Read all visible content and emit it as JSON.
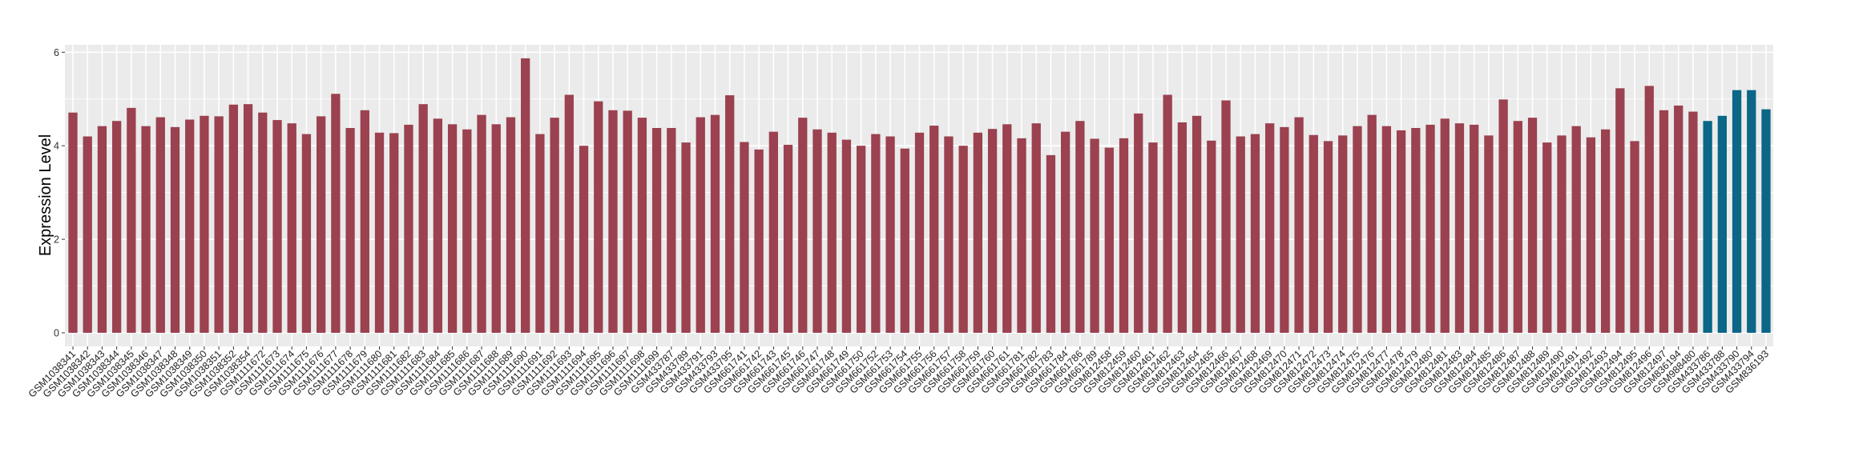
{
  "chart_data": {
    "type": "bar",
    "title": "",
    "xlabel": "",
    "ylabel": "Expression Level",
    "ylim": [
      0,
      6
    ],
    "yticks": [
      0,
      2,
      4,
      6
    ],
    "grid": true,
    "colors": {
      "group_a": "#9B4150",
      "group_b": "#0B6688",
      "panel": "#EBEBEB",
      "grid": "#FFFFFF"
    },
    "categories": [
      "GSM1038341",
      "GSM1038342",
      "GSM1038343",
      "GSM1038344",
      "GSM1038345",
      "GSM1038346",
      "GSM1038347",
      "GSM1038348",
      "GSM1038349",
      "GSM1038350",
      "GSM1038351",
      "GSM1038352",
      "GSM1038354",
      "GSM1111672",
      "GSM1111673",
      "GSM1111674",
      "GSM1111675",
      "GSM1111676",
      "GSM1111677",
      "GSM1111678",
      "GSM1111679",
      "GSM1111680",
      "GSM1111681",
      "GSM1111682",
      "GSM1111683",
      "GSM1111684",
      "GSM1111685",
      "GSM1111686",
      "GSM1111687",
      "GSM1111688",
      "GSM1111689",
      "GSM1111690",
      "GSM1111691",
      "GSM1111692",
      "GSM1111693",
      "GSM1111694",
      "GSM1111695",
      "GSM1111696",
      "GSM1111697",
      "GSM1111698",
      "GSM1111699",
      "GSM433787",
      "GSM433789",
      "GSM433791",
      "GSM433793",
      "GSM433795",
      "GSM661741",
      "GSM661742",
      "GSM661743",
      "GSM661745",
      "GSM661746",
      "GSM661747",
      "GSM661748",
      "GSM661749",
      "GSM661750",
      "GSM661752",
      "GSM661753",
      "GSM661754",
      "GSM661755",
      "GSM661756",
      "GSM661757",
      "GSM661758",
      "GSM661759",
      "GSM661760",
      "GSM661761",
      "GSM661781",
      "GSM661782",
      "GSM661783",
      "GSM661784",
      "GSM661786",
      "GSM661789",
      "GSM812458",
      "GSM812459",
      "GSM812460",
      "GSM812461",
      "GSM812462",
      "GSM812463",
      "GSM812464",
      "GSM812465",
      "GSM812466",
      "GSM812467",
      "GSM812468",
      "GSM812469",
      "GSM812470",
      "GSM812471",
      "GSM812472",
      "GSM812473",
      "GSM812474",
      "GSM812475",
      "GSM812476",
      "GSM812477",
      "GSM812478",
      "GSM812479",
      "GSM812480",
      "GSM812481",
      "GSM812483",
      "GSM812484",
      "GSM812485",
      "GSM812486",
      "GSM812487",
      "GSM812488",
      "GSM812489",
      "GSM812490",
      "GSM812491",
      "GSM812492",
      "GSM812493",
      "GSM812494",
      "GSM812495",
      "GSM812496",
      "GSM812497",
      "GSM836194",
      "GSM988480",
      "GSM433786",
      "GSM433788",
      "GSM433790",
      "GSM433794",
      "GSM836193"
    ],
    "values": [
      4.71,
      4.2,
      4.42,
      4.53,
      4.81,
      4.42,
      4.61,
      4.4,
      4.56,
      4.64,
      4.63,
      4.88,
      4.89,
      4.71,
      4.55,
      4.48,
      4.25,
      4.63,
      5.11,
      4.38,
      4.76,
      4.28,
      4.27,
      4.45,
      4.89,
      4.58,
      4.46,
      4.35,
      4.66,
      4.46,
      4.61,
      5.87,
      4.25,
      4.6,
      5.09,
      4.0,
      4.95,
      4.76,
      4.75,
      4.6,
      4.38,
      4.38,
      4.07,
      4.61,
      4.66,
      5.08,
      4.08,
      3.92,
      4.3,
      4.02,
      4.6,
      4.35,
      4.28,
      4.13,
      4.0,
      4.25,
      4.2,
      3.94,
      4.28,
      4.43,
      4.2,
      4.0,
      4.28,
      4.36,
      4.46,
      4.16,
      4.48,
      3.8,
      4.3,
      4.53,
      4.15,
      3.96,
      4.16,
      4.69,
      4.07,
      5.09,
      4.5,
      4.64,
      4.11,
      4.97,
      4.2,
      4.25,
      4.48,
      4.4,
      4.61,
      4.23,
      4.1,
      4.22,
      4.42,
      4.66,
      4.42,
      4.33,
      4.38,
      4.45,
      4.58,
      4.48,
      4.45,
      4.22,
      4.99,
      4.53,
      4.6,
      4.07,
      4.22,
      4.42,
      4.18,
      4.35,
      5.23,
      4.1,
      5.28,
      4.76,
      4.86,
      4.73,
      4.53,
      4.64,
      5.19,
      5.19,
      4.78
    ],
    "groups": [
      "a",
      "a",
      "a",
      "a",
      "a",
      "a",
      "a",
      "a",
      "a",
      "a",
      "a",
      "a",
      "a",
      "a",
      "a",
      "a",
      "a",
      "a",
      "a",
      "a",
      "a",
      "a",
      "a",
      "a",
      "a",
      "a",
      "a",
      "a",
      "a",
      "a",
      "a",
      "a",
      "a",
      "a",
      "a",
      "a",
      "a",
      "a",
      "a",
      "a",
      "a",
      "a",
      "a",
      "a",
      "a",
      "a",
      "a",
      "a",
      "a",
      "a",
      "a",
      "a",
      "a",
      "a",
      "a",
      "a",
      "a",
      "a",
      "a",
      "a",
      "a",
      "a",
      "a",
      "a",
      "a",
      "a",
      "a",
      "a",
      "a",
      "a",
      "a",
      "a",
      "a",
      "a",
      "a",
      "a",
      "a",
      "a",
      "a",
      "a",
      "a",
      "a",
      "a",
      "a",
      "a",
      "a",
      "a",
      "a",
      "a",
      "a",
      "a",
      "a",
      "a",
      "a",
      "a",
      "a",
      "a",
      "a",
      "a",
      "a",
      "a",
      "a",
      "a",
      "a",
      "a",
      "a",
      "a",
      "a",
      "a",
      "a",
      "a",
      "a",
      "b",
      "b",
      "b",
      "b",
      "b"
    ]
  }
}
